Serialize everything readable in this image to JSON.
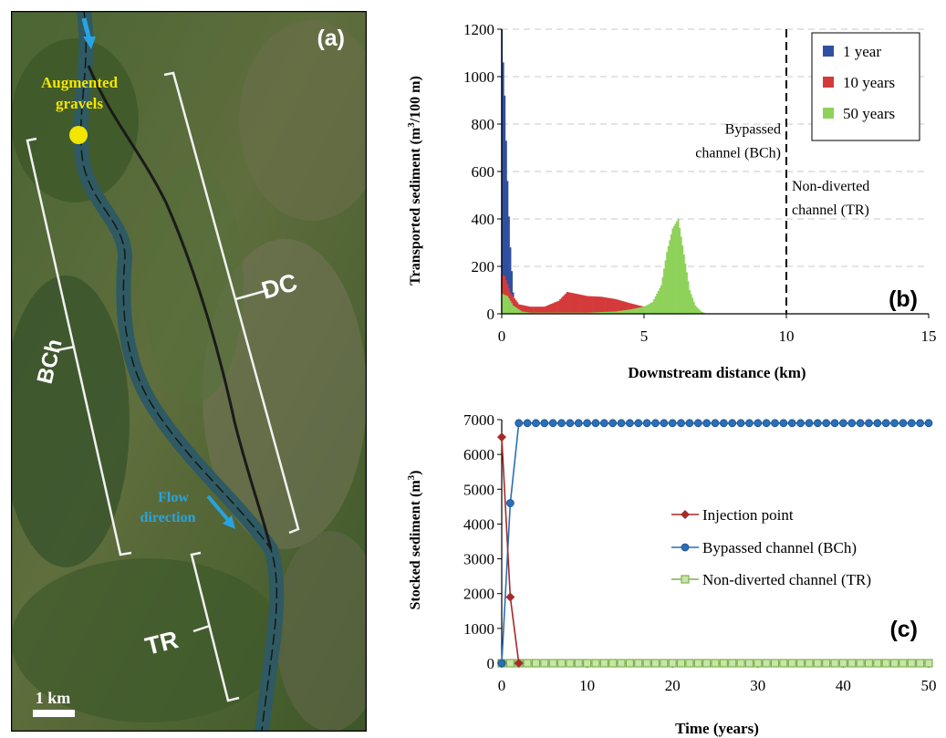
{
  "panel_a": {
    "letter": "(a)",
    "augmented_label_1": "Augmented",
    "augmented_label_2": "gravels",
    "flow_label_1": "Flow",
    "flow_label_2": "direction",
    "label_dc": "DC",
    "label_bch": "BCh",
    "label_tr": "TR",
    "scale_label": "1 km",
    "colors": {
      "augmented": "#f2e600",
      "flow": "#29a3e0",
      "river": "#2f5a63",
      "terrain": "#3f5a2a"
    }
  },
  "chart_data": [
    {
      "type": "bar",
      "panel": "(b)",
      "title": "",
      "xlabel": "Downstream distance (km)",
      "ylabel_main": "Transported sediment (m",
      "ylabel_sup": "3",
      "ylabel_end": "/100 m)",
      "xlim": [
        0,
        15
      ],
      "ylim": [
        0,
        1200
      ],
      "xticks": [
        0,
        5,
        10,
        15
      ],
      "yticks": [
        0,
        200,
        400,
        600,
        800,
        1000,
        1200
      ],
      "grid": "horizontal-dashed",
      "legend_position": "top-right",
      "vertical_line_x": 10,
      "annotations": [
        {
          "lines": [
            "Bypassed",
            "channel (BCh)"
          ],
          "side": "left"
        },
        {
          "lines": [
            "Non-diverted",
            "channel (TR)"
          ],
          "side": "right"
        }
      ],
      "series": [
        {
          "name": "1 year",
          "color": "#2f4fa0",
          "x": [
            0.0,
            0.05,
            0.1,
            0.15,
            0.2,
            0.25,
            0.3,
            0.35,
            0.4,
            0.45,
            0.5
          ],
          "y": [
            1200,
            1060,
            920,
            730,
            560,
            410,
            280,
            180,
            90,
            30,
            0
          ]
        },
        {
          "name": "10 years",
          "color": "#d43a3a",
          "x": [
            0.0,
            0.1,
            0.3,
            0.6,
            1.0,
            1.5,
            2.0,
            2.3,
            2.6,
            3.0,
            3.5,
            4.0,
            4.5,
            5.0,
            5.5,
            5.8,
            6.0
          ],
          "y": [
            165,
            160,
            90,
            40,
            30,
            30,
            55,
            92,
            85,
            75,
            72,
            62,
            45,
            30,
            12,
            4,
            0
          ]
        },
        {
          "name": "50 years",
          "color": "#8ed25a",
          "x": [
            0.0,
            0.2,
            0.4,
            0.7,
            1.0,
            2.0,
            3.0,
            4.0,
            4.5,
            5.0,
            5.3,
            5.6,
            5.8,
            6.0,
            6.2,
            6.4,
            6.6,
            6.8,
            7.0,
            7.2
          ],
          "y": [
            85,
            75,
            35,
            10,
            5,
            5,
            5,
            10,
            18,
            30,
            50,
            120,
            260,
            360,
            400,
            250,
            100,
            35,
            10,
            0
          ]
        }
      ]
    },
    {
      "type": "line",
      "panel": "(c)",
      "title": "",
      "xlabel": "Time (years)",
      "ylabel_main": "Stocked sediment (m",
      "ylabel_sup": "3",
      "ylabel_end": ")",
      "xlim": [
        0,
        50
      ],
      "ylim": [
        0,
        7000
      ],
      "xticks": [
        0,
        10,
        20,
        30,
        40,
        50
      ],
      "yticks": [
        0,
        1000,
        2000,
        3000,
        4000,
        5000,
        6000,
        7000
      ],
      "grid": "none",
      "legend_position": "center-right",
      "series": [
        {
          "name": "Injection point",
          "color": "#a52a2a",
          "marker": "diamond",
          "x": [
            0,
            1,
            2
          ],
          "y": [
            6500,
            1900,
            0
          ]
        },
        {
          "name": "Bypassed channel (BCh)",
          "color": "#2a6fb8",
          "marker": "circle",
          "x": [
            0,
            1,
            2,
            3,
            4,
            5,
            6,
            7,
            8,
            9,
            10,
            11,
            12,
            13,
            14,
            15,
            16,
            17,
            18,
            19,
            20,
            21,
            22,
            23,
            24,
            25,
            26,
            27,
            28,
            29,
            30,
            31,
            32,
            33,
            34,
            35,
            36,
            37,
            38,
            39,
            40,
            41,
            42,
            43,
            44,
            45,
            46,
            47,
            48,
            49,
            50
          ],
          "y": [
            0,
            4600,
            6900,
            6900,
            6900,
            6900,
            6900,
            6900,
            6900,
            6900,
            6900,
            6900,
            6900,
            6900,
            6900,
            6900,
            6900,
            6900,
            6900,
            6900,
            6900,
            6900,
            6900,
            6900,
            6900,
            6900,
            6900,
            6900,
            6900,
            6900,
            6900,
            6900,
            6900,
            6900,
            6900,
            6900,
            6900,
            6900,
            6900,
            6900,
            6900,
            6900,
            6900,
            6900,
            6900,
            6900,
            6900,
            6900,
            6900,
            6900,
            6900
          ]
        },
        {
          "name": "Non-diverted channel (TR)",
          "color": "#7fb04f",
          "marker": "square",
          "x": [
            0,
            1,
            2,
            3,
            4,
            5,
            6,
            7,
            8,
            9,
            10,
            11,
            12,
            13,
            14,
            15,
            16,
            17,
            18,
            19,
            20,
            21,
            22,
            23,
            24,
            25,
            26,
            27,
            28,
            29,
            30,
            31,
            32,
            33,
            34,
            35,
            36,
            37,
            38,
            39,
            40,
            41,
            42,
            43,
            44,
            45,
            46,
            47,
            48,
            49,
            50
          ],
          "y": [
            0,
            0,
            0,
            0,
            0,
            0,
            0,
            0,
            0,
            0,
            0,
            0,
            0,
            0,
            0,
            0,
            0,
            0,
            0,
            0,
            0,
            0,
            0,
            0,
            0,
            0,
            0,
            0,
            0,
            0,
            0,
            0,
            0,
            0,
            0,
            0,
            0,
            0,
            0,
            0,
            0,
            0,
            0,
            0,
            0,
            0,
            0,
            0,
            0,
            0,
            0
          ]
        }
      ]
    }
  ]
}
